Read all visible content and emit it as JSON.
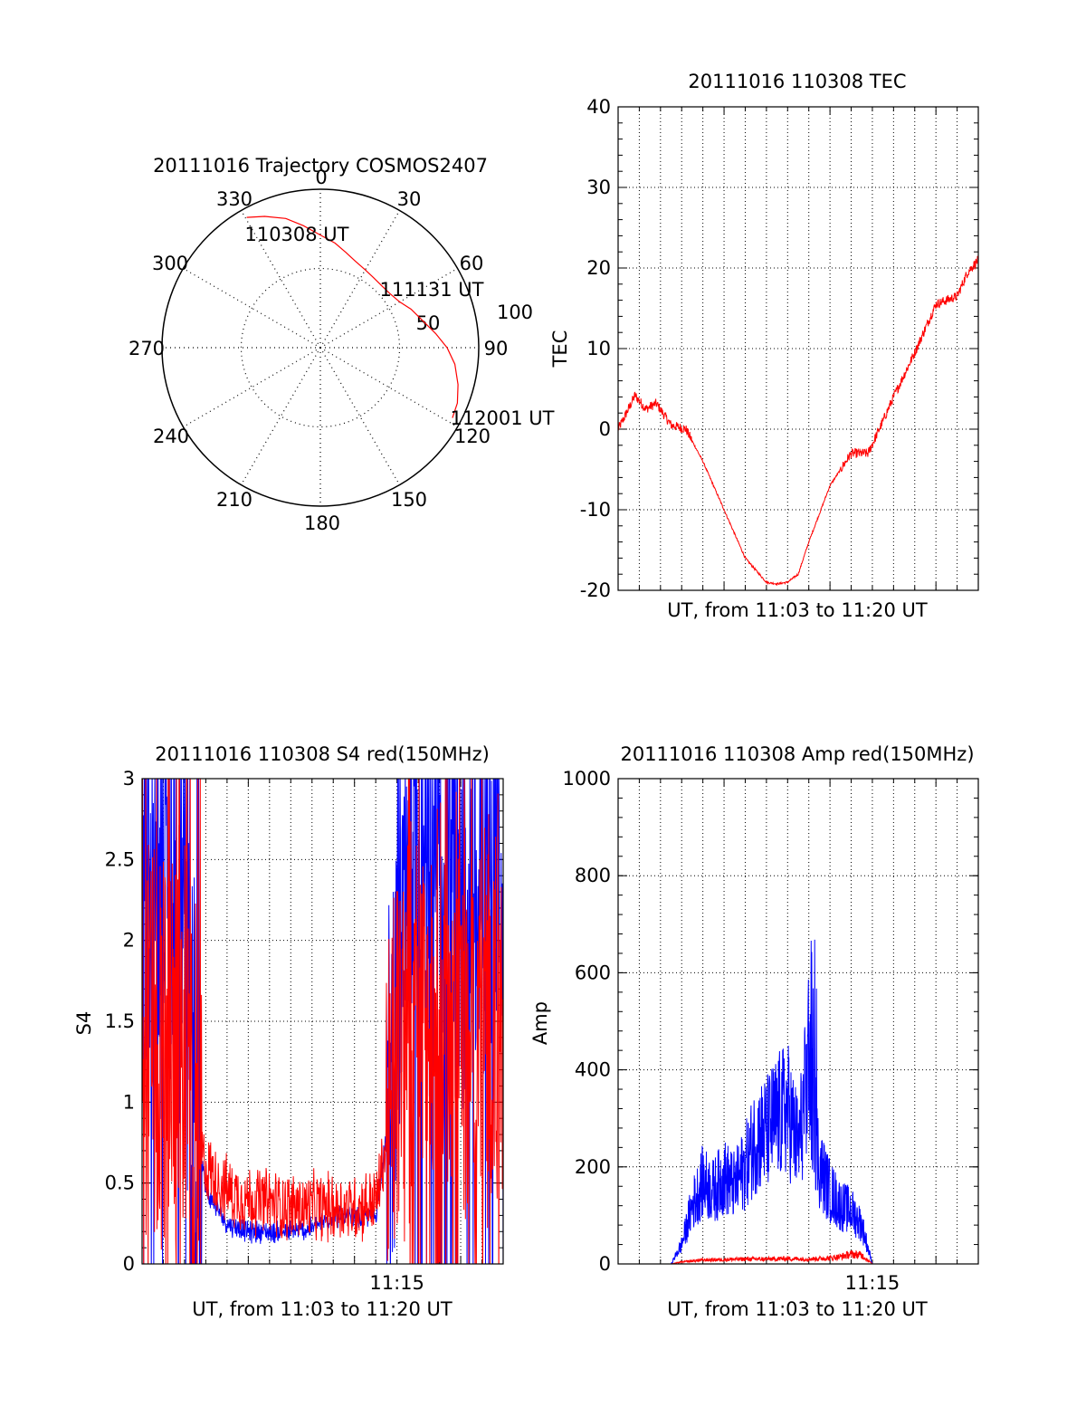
{
  "chart_data": [
    {
      "type": "polar",
      "title": "20111016 Trajectory COSMOS2407",
      "angle_labels": [
        "0",
        "30",
        "60",
        "90",
        "120",
        "150",
        "180",
        "210",
        "240",
        "270",
        "300",
        "330"
      ],
      "radius_labels": [
        "50",
        "100"
      ],
      "rlim": [
        0,
        100
      ],
      "grid": true,
      "series": [
        {
          "color": "#ff0000",
          "azimuth": [
            330.5,
            337,
            345,
            352,
            0,
            8,
            15,
            22,
            30,
            37,
            45,
            52,
            60,
            67,
            75,
            83,
            90,
            97,
            105,
            112,
            118
          ],
          "elevation": [
            5,
            9,
            14,
            20,
            26,
            30,
            34,
            37,
            39,
            40,
            40.5,
            40,
            38,
            34,
            30,
            24,
            18,
            13,
            9,
            6,
            5
          ]
        }
      ],
      "annotations": [
        {
          "text": "110308 UT",
          "azimuth": 330.5,
          "elevation": 5
        },
        {
          "text": "111131 UT",
          "azimuth": 53,
          "elevation": 40
        },
        {
          "text": "112001 UT",
          "azimuth": 118,
          "elevation": 5
        }
      ]
    },
    {
      "type": "line",
      "title": "20111016 110308 TEC",
      "xlabel": "UT, from 11:03 to 11:20 UT",
      "ylabel": "TEC",
      "xlim": [
        0,
        17
      ],
      "ylim": [
        -20,
        40
      ],
      "yticks": [
        "-20",
        "-10",
        "0",
        "10",
        "20",
        "30",
        "40"
      ],
      "grid": true,
      "series": [
        {
          "color": "#ff0000",
          "x": [
            0,
            0.3,
            0.8,
            1.3,
            1.8,
            2.5,
            3.2,
            4,
            5,
            6,
            7,
            7.5,
            8,
            8.5,
            9,
            10,
            11,
            11.8,
            12.5,
            13,
            14,
            15,
            16,
            16.5,
            17
          ],
          "y": [
            0,
            1.5,
            4.2,
            2.5,
            3.2,
            0.5,
            0,
            -4,
            -10,
            -16,
            -19,
            -19.2,
            -19,
            -18,
            -14,
            -7,
            -3,
            -3,
            1,
            4,
            9.5,
            15.5,
            16.5,
            19.5,
            21
          ]
        }
      ]
    },
    {
      "type": "line",
      "title": "20111016 110308 S4 red(150MHz)",
      "xlabel": "UT, from 11:03 to 11:20 UT",
      "ylabel": "S4",
      "xlim": [
        0,
        17
      ],
      "ylim": [
        0,
        3
      ],
      "yticks": [
        "0",
        "0.5",
        "1",
        "1.5",
        "2",
        "2.5",
        "3"
      ],
      "xtick_labels": [
        {
          "x": 12,
          "label": "11:15"
        }
      ],
      "grid": true,
      "series": [
        {
          "color": "#0000ff",
          "x": [
            0,
            1,
            2,
            2.5,
            3,
            4,
            5,
            6,
            7,
            8,
            9,
            10,
            11,
            11.6,
            12,
            12.5,
            13,
            14,
            15,
            16,
            17
          ],
          "y": [
            2.6,
            2.3,
            2.0,
            1.0,
            0.45,
            0.25,
            0.2,
            0.2,
            0.2,
            0.22,
            0.3,
            0.28,
            0.3,
            0.9,
            1.8,
            2.1,
            2.5,
            2.4,
            2.2,
            2.3,
            2.3
          ]
        },
        {
          "color": "#ff0000",
          "x": [
            0,
            1,
            2,
            2.5,
            3,
            4,
            5,
            6,
            7,
            8,
            9,
            10,
            11,
            11.6,
            12,
            12.5,
            13,
            14,
            15,
            16,
            17
          ],
          "y": [
            1.6,
            1.4,
            1.1,
            0.8,
            0.6,
            0.45,
            0.4,
            0.38,
            0.35,
            0.35,
            0.35,
            0.35,
            0.38,
            0.8,
            1.3,
            1.5,
            1.6,
            1.5,
            1.4,
            1.5,
            1.5
          ]
        }
      ]
    },
    {
      "type": "line",
      "title": "20111016 110308 Amp red(150MHz)",
      "xlabel": "UT, from 11:03 to 11:20 UT",
      "ylabel": "Amp",
      "xlim": [
        0,
        17
      ],
      "ylim": [
        0,
        1000
      ],
      "yticks": [
        "0",
        "200",
        "400",
        "600",
        "800",
        "1000"
      ],
      "xtick_labels": [
        {
          "x": 12,
          "label": "11:15"
        }
      ],
      "grid": true,
      "series": [
        {
          "color": "#0000ff",
          "x": [
            0,
            2.5,
            3,
            3.5,
            4,
            4.5,
            5,
            5.5,
            6,
            6.5,
            7,
            7.5,
            8,
            8.5,
            9,
            9.5,
            10,
            10.5,
            11,
            11.5,
            12,
            17
          ],
          "y": [
            0,
            0,
            40,
            120,
            170,
            150,
            180,
            160,
            200,
            260,
            270,
            300,
            320,
            240,
            400,
            200,
            150,
            120,
            110,
            80,
            0,
            0
          ]
        },
        {
          "color": "#ff0000",
          "x": [
            0,
            2.5,
            3,
            4,
            5,
            6,
            7,
            8,
            9,
            10,
            10.5,
            11,
            11.5,
            12,
            17
          ],
          "y": [
            0,
            0,
            4,
            8,
            9,
            10,
            10,
            11,
            10,
            12,
            15,
            20,
            18,
            0,
            0
          ]
        }
      ]
    }
  ]
}
